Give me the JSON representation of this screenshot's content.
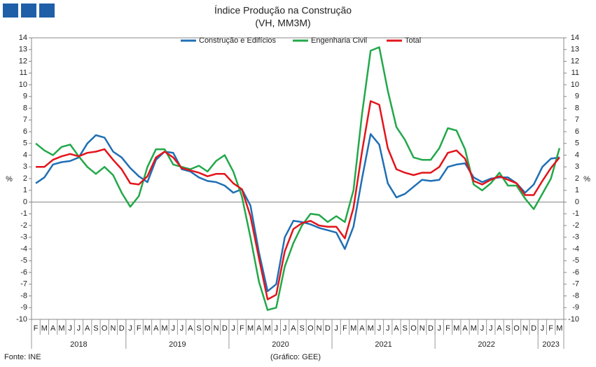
{
  "chart_data": {
    "type": "line",
    "title": "Índice Produção na Construção",
    "subtitle": "(VH, MM3M)",
    "y_label": "%",
    "y2_label": "%",
    "source": "Fonte: INE",
    "credit": "(Gráfico: GEE)",
    "categories": [
      "F",
      "M",
      "A",
      "M",
      "J",
      "J",
      "A",
      "S",
      "O",
      "N",
      "D",
      "J",
      "F",
      "M",
      "A",
      "M",
      "J",
      "J",
      "A",
      "S",
      "O",
      "N",
      "D",
      "J",
      "F",
      "M",
      "A",
      "M",
      "J",
      "J",
      "A",
      "S",
      "O",
      "N",
      "D",
      "J",
      "F",
      "M",
      "A",
      "M",
      "J",
      "J",
      "A",
      "S",
      "O",
      "N",
      "D",
      "J",
      "F",
      "M",
      "A",
      "M",
      "J",
      "J",
      "A",
      "S",
      "O",
      "N",
      "D",
      "J",
      "F",
      "M"
    ],
    "year_groups": [
      {
        "label": "2018",
        "months": 11
      },
      {
        "label": "2019",
        "months": 12
      },
      {
        "label": "2020",
        "months": 12
      },
      {
        "label": "2021",
        "months": 12
      },
      {
        "label": "2022",
        "months": 12
      },
      {
        "label": "2023",
        "months": 3
      }
    ],
    "series": [
      {
        "name": "Construção e Edifícios",
        "color": "#1f6fb5",
        "values": [
          1.6,
          2.1,
          3.2,
          3.4,
          3.5,
          3.8,
          5.0,
          5.7,
          5.5,
          4.3,
          3.8,
          2.9,
          2.2,
          1.7,
          3.6,
          4.3,
          4.2,
          2.8,
          2.6,
          2.1,
          1.8,
          1.7,
          1.4,
          0.8,
          1.1,
          -0.3,
          -4.3,
          -7.6,
          -7.0,
          -3.0,
          -1.6,
          -1.7,
          -1.9,
          -2.2,
          -2.4,
          -2.6,
          -4.0,
          -2.1,
          2.0,
          5.8,
          4.9,
          1.6,
          0.4,
          0.7,
          1.3,
          1.9,
          1.8,
          1.9,
          3.0,
          3.2,
          3.3,
          2.1,
          1.7,
          2.0,
          2.1,
          2.1,
          1.6,
          0.8,
          1.5,
          3.0,
          3.7,
          3.8
        ]
      },
      {
        "name": "Engenharia Civil",
        "color": "#22a84a",
        "values": [
          5.0,
          4.4,
          4.0,
          4.7,
          4.9,
          3.9,
          3.0,
          2.4,
          3.0,
          2.3,
          0.8,
          -0.4,
          0.5,
          3.0,
          4.5,
          4.5,
          3.2,
          3.0,
          2.8,
          3.1,
          2.6,
          3.5,
          4.0,
          2.6,
          0.5,
          -3.0,
          -6.8,
          -9.2,
          -9.0,
          -5.5,
          -3.5,
          -2.0,
          -1.0,
          -1.1,
          -1.7,
          -1.2,
          -1.7,
          1.0,
          7.5,
          12.9,
          13.2,
          9.5,
          6.4,
          5.3,
          3.8,
          3.6,
          3.6,
          4.6,
          6.3,
          6.1,
          4.5,
          1.5,
          1.0,
          1.6,
          2.5,
          1.4,
          1.4,
          0.3,
          -0.6,
          0.7,
          2.0,
          4.6
        ]
      },
      {
        "name": "Total",
        "color": "#e3141b",
        "values": [
          3.0,
          3.0,
          3.6,
          3.9,
          4.1,
          3.9,
          4.2,
          4.3,
          4.5,
          3.6,
          2.8,
          1.6,
          1.5,
          2.2,
          3.8,
          4.3,
          3.8,
          2.9,
          2.7,
          2.5,
          2.2,
          2.4,
          2.4,
          1.6,
          1.1,
          -1.2,
          -4.8,
          -8.3,
          -7.9,
          -4.2,
          -2.3,
          -1.8,
          -1.6,
          -2.0,
          -2.1,
          -2.1,
          -3.1,
          -0.5,
          4.3,
          8.6,
          8.3,
          4.6,
          2.8,
          2.5,
          2.3,
          2.5,
          2.5,
          3.0,
          4.2,
          4.4,
          3.7,
          1.8,
          1.5,
          1.9,
          2.2,
          1.9,
          1.6,
          0.6,
          0.6,
          1.8,
          2.9,
          3.8
        ]
      }
    ],
    "ylim": [
      -10,
      14
    ],
    "yticks": [
      -10,
      -9,
      -8,
      -7,
      -6,
      -5,
      -4,
      -3,
      -2,
      -1,
      0,
      1,
      2,
      3,
      4,
      5,
      6,
      7,
      8,
      9,
      10,
      11,
      12,
      13,
      14
    ],
    "y2lim": [
      -10,
      14
    ],
    "y2ticks": [
      -10,
      -9,
      -8,
      -7,
      -6,
      -5,
      -4,
      -3,
      -2,
      -1,
      0,
      1,
      2,
      3,
      4,
      5,
      6,
      7,
      8,
      9,
      10,
      11,
      12,
      13,
      14
    ],
    "legend": "top"
  }
}
